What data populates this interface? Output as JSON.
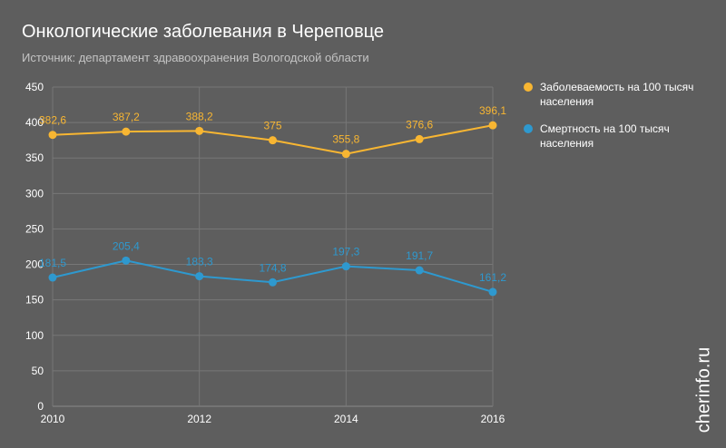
{
  "header": {
    "title": "Онкологические заболевания в Череповце",
    "subtitle": "Источник: департамент здравоохранения Вологодской области"
  },
  "watermark": "cherinfo.ru",
  "colors": {
    "background": "#5e5e5e",
    "grid": "#777777",
    "series1": "#f8b632",
    "series2": "#2e99cf"
  },
  "chart_data": {
    "type": "line",
    "title": "Онкологические заболевания в Череповце",
    "subtitle": "Источник: департамент здравоохранения Вологодской области",
    "x": [
      2010,
      2011,
      2012,
      2013,
      2014,
      2015,
      2016
    ],
    "xticks": [
      "2010",
      "2012",
      "2014",
      "2016"
    ],
    "yticks": [
      "0",
      "50",
      "100",
      "150",
      "200",
      "250",
      "300",
      "350",
      "400",
      "450"
    ],
    "ylim": [
      0,
      450
    ],
    "grid": true,
    "legend_position": "right",
    "series": [
      {
        "name": "Заболеваемость на 100 тысяч населения",
        "color": "#f8b632",
        "values": [
          382.6,
          387.2,
          388.2,
          375,
          355.8,
          376.6,
          396.1
        ],
        "labels": [
          "382,6",
          "387,2",
          "388,2",
          "375",
          "355,8",
          "376,6",
          "396,1"
        ]
      },
      {
        "name": "Смертность на 100 тысяч населения",
        "color": "#2e99cf",
        "values": [
          181.5,
          205.4,
          183.3,
          174.8,
          197.3,
          191.7,
          161.2
        ],
        "labels": [
          "181,5",
          "205,4",
          "183,3",
          "174,8",
          "197,3",
          "191,7",
          "161,2"
        ]
      }
    ]
  }
}
